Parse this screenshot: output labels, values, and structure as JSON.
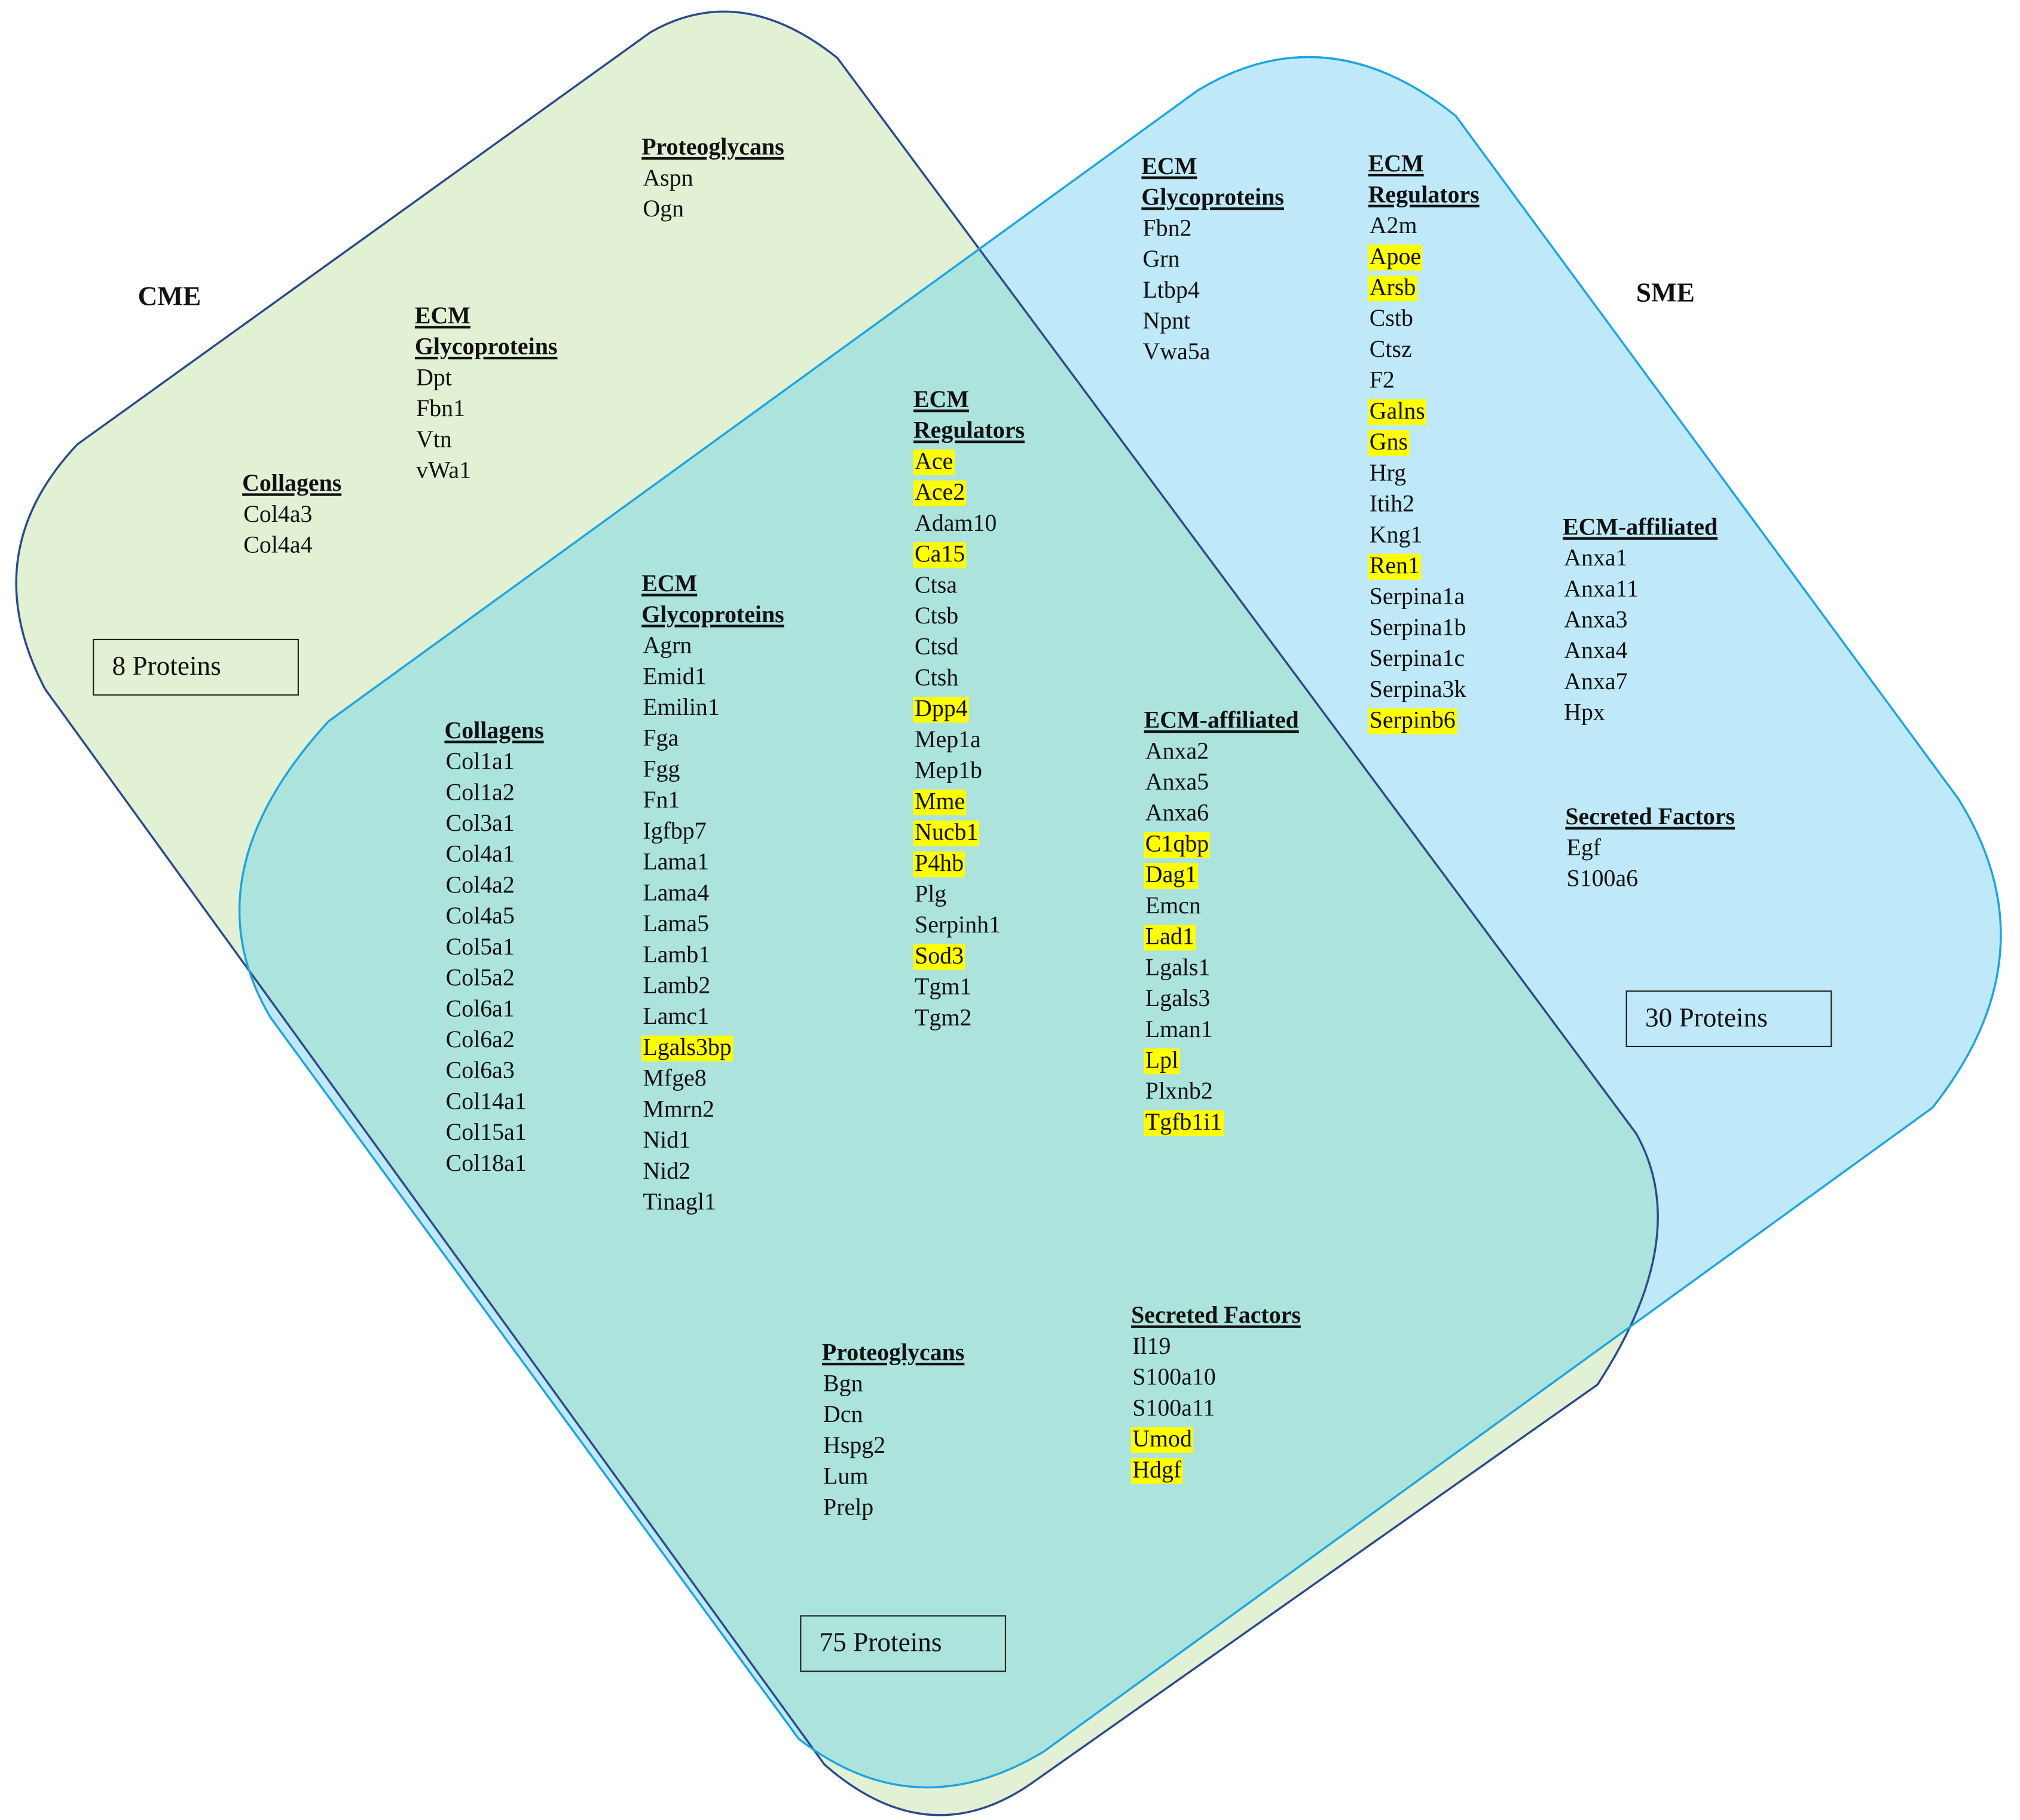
{
  "sets": {
    "cme": {
      "label": "CME",
      "fill": "#e2f0d4",
      "stroke": "#2b4a8b"
    },
    "sme": {
      "label": "SME",
      "fill": "#bfe9f8",
      "stroke": "#1ba4e2"
    },
    "overlap_fill": "#ace3dc",
    "highlight_color": "#ffff00"
  },
  "counts": {
    "cme_only": "8 Proteins",
    "shared": "75 Proteins",
    "sme_only": "30 Proteins"
  },
  "groups": {
    "cme_proteoglycans": {
      "heading": "Proteoglycans",
      "items": [
        {
          "name": "Aspn"
        },
        {
          "name": "Ogn"
        }
      ]
    },
    "cme_glycoproteins": {
      "heading": "ECM Glycoproteins",
      "items": [
        {
          "name": "Dpt"
        },
        {
          "name": "Fbn1"
        },
        {
          "name": "Vtn"
        },
        {
          "name": "vWa1"
        }
      ]
    },
    "cme_collagens": {
      "heading": "Collagens",
      "items": [
        {
          "name": "Col4a3"
        },
        {
          "name": "Col4a4"
        }
      ]
    },
    "sme_glycoproteins": {
      "heading": "ECM Glycoproteins",
      "items": [
        {
          "name": "Fbn2"
        },
        {
          "name": "Grn"
        },
        {
          "name": "Ltbp4"
        },
        {
          "name": "Npnt"
        },
        {
          "name": "Vwa5a"
        }
      ]
    },
    "sme_regulators": {
      "heading": "ECM Regulators",
      "items": [
        {
          "name": "A2m"
        },
        {
          "name": "Apoe",
          "highlighted": true
        },
        {
          "name": "Arsb",
          "highlighted": true
        },
        {
          "name": "Cstb"
        },
        {
          "name": "Ctsz"
        },
        {
          "name": "F2"
        },
        {
          "name": "Galns",
          "highlighted": true
        },
        {
          "name": "Gns",
          "highlighted": true
        },
        {
          "name": "Hrg"
        },
        {
          "name": "Itih2"
        },
        {
          "name": "Kng1"
        },
        {
          "name": "Ren1",
          "highlighted": true
        },
        {
          "name": "Serpina1a"
        },
        {
          "name": "Serpina1b"
        },
        {
          "name": "Serpina1c"
        },
        {
          "name": "Serpina3k"
        },
        {
          "name": "Serpinb6",
          "highlighted": true
        }
      ]
    },
    "sme_affiliated": {
      "heading": "ECM-affiliated",
      "items": [
        {
          "name": "Anxa1"
        },
        {
          "name": "Anxa11"
        },
        {
          "name": "Anxa3"
        },
        {
          "name": "Anxa4"
        },
        {
          "name": "Anxa7"
        },
        {
          "name": "Hpx"
        }
      ]
    },
    "sme_secreted": {
      "heading": "Secreted Factors",
      "items": [
        {
          "name": "Egf"
        },
        {
          "name": "S100a6"
        }
      ]
    },
    "shared_collagens": {
      "heading": "Collagens",
      "items": [
        {
          "name": "Col1a1"
        },
        {
          "name": "Col1a2"
        },
        {
          "name": "Col3a1"
        },
        {
          "name": "Col4a1"
        },
        {
          "name": "Col4a2"
        },
        {
          "name": "Col4a5"
        },
        {
          "name": "Col5a1"
        },
        {
          "name": "Col5a2"
        },
        {
          "name": "Col6a1"
        },
        {
          "name": "Col6a2"
        },
        {
          "name": "Col6a3"
        },
        {
          "name": "Col14a1"
        },
        {
          "name": "Col15a1"
        },
        {
          "name": "Col18a1"
        }
      ]
    },
    "shared_glycoproteins": {
      "heading": "ECM Glycoproteins",
      "items": [
        {
          "name": "Agrn"
        },
        {
          "name": "Emid1"
        },
        {
          "name": "Emilin1"
        },
        {
          "name": "Fga"
        },
        {
          "name": "Fgg"
        },
        {
          "name": "Fn1"
        },
        {
          "name": "Igfbp7"
        },
        {
          "name": "Lama1"
        },
        {
          "name": "Lama4"
        },
        {
          "name": "Lama5"
        },
        {
          "name": "Lamb1"
        },
        {
          "name": "Lamb2"
        },
        {
          "name": "Lamc1"
        },
        {
          "name": "Lgals3bp",
          "highlighted": true
        },
        {
          "name": "Mfge8"
        },
        {
          "name": "Mmrn2"
        },
        {
          "name": "Nid1"
        },
        {
          "name": "Nid2"
        },
        {
          "name": "Tinagl1"
        }
      ]
    },
    "shared_regulators": {
      "heading": "ECM Regulators",
      "items": [
        {
          "name": "Ace",
          "highlighted": true
        },
        {
          "name": "Ace2",
          "highlighted": true
        },
        {
          "name": "Adam10"
        },
        {
          "name": "Ca15",
          "highlighted": true
        },
        {
          "name": "Ctsa"
        },
        {
          "name": "Ctsb"
        },
        {
          "name": "Ctsd"
        },
        {
          "name": "Ctsh"
        },
        {
          "name": "Dpp4",
          "highlighted": true
        },
        {
          "name": "Mep1a"
        },
        {
          "name": "Mep1b"
        },
        {
          "name": "Mme",
          "highlighted": true
        },
        {
          "name": "Nucb1",
          "highlighted": true
        },
        {
          "name": "P4hb",
          "highlighted": true
        },
        {
          "name": "Plg"
        },
        {
          "name": "Serpinh1"
        },
        {
          "name": "Sod3",
          "highlighted": true
        },
        {
          "name": "Tgm1"
        },
        {
          "name": "Tgm2"
        }
      ]
    },
    "shared_affiliated": {
      "heading": "ECM-affiliated",
      "items": [
        {
          "name": "Anxa2"
        },
        {
          "name": "Anxa5"
        },
        {
          "name": "Anxa6"
        },
        {
          "name": "C1qbp",
          "highlighted": true
        },
        {
          "name": "Dag1",
          "highlighted": true
        },
        {
          "name": "Emcn"
        },
        {
          "name": "Lad1",
          "highlighted": true
        },
        {
          "name": "Lgals1"
        },
        {
          "name": "Lgals3"
        },
        {
          "name": "Lman1"
        },
        {
          "name": "Lpl",
          "highlighted": true
        },
        {
          "name": "Plxnb2"
        },
        {
          "name": "Tgfb1i1",
          "highlighted": true
        }
      ]
    },
    "shared_secreted": {
      "heading": "Secreted Factors",
      "items": [
        {
          "name": "Il19"
        },
        {
          "name": "S100a10"
        },
        {
          "name": "S100a11"
        },
        {
          "name": "Umod",
          "highlighted": true
        },
        {
          "name": "Hdgf",
          "highlighted": true
        }
      ]
    },
    "shared_proteoglycans": {
      "heading": "Proteoglycans",
      "items": [
        {
          "name": "Bgn"
        },
        {
          "name": "Dcn"
        },
        {
          "name": "Hspg2"
        },
        {
          "name": "Lum"
        },
        {
          "name": "Prelp"
        }
      ]
    }
  }
}
